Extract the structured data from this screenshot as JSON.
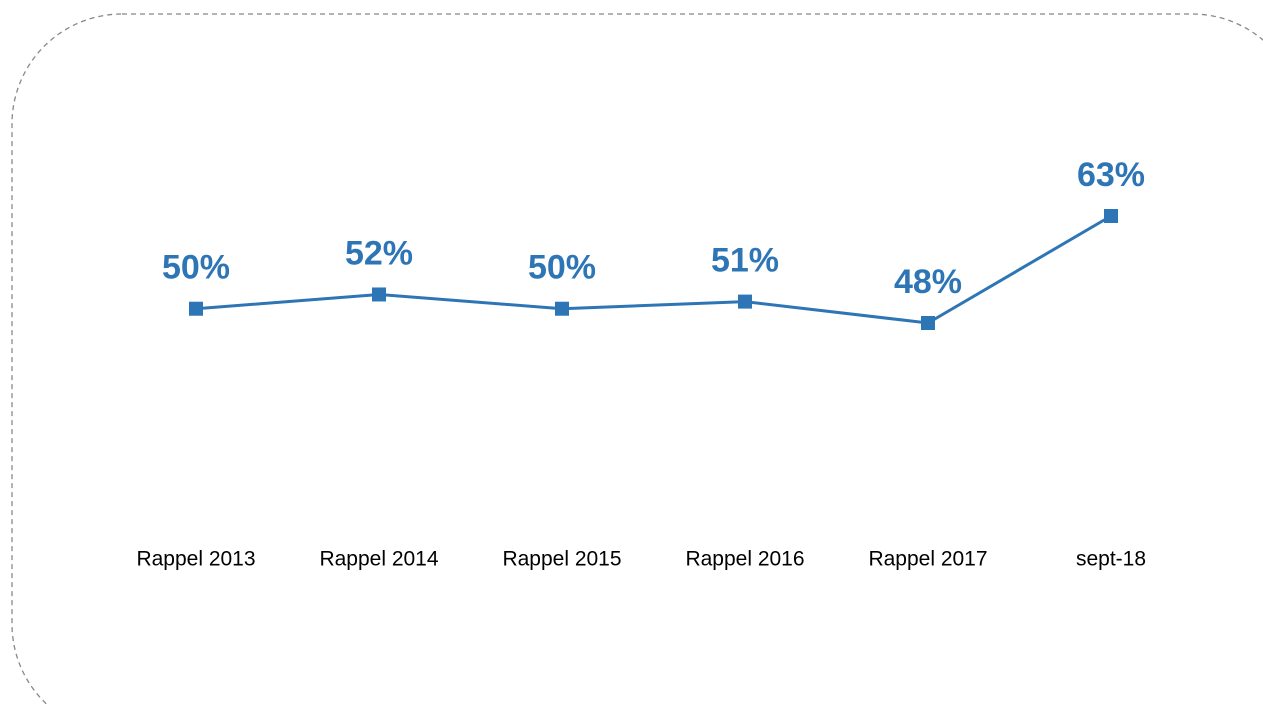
{
  "chart_data": {
    "type": "line",
    "categories": [
      "Rappel 2013",
      "Rappel 2014",
      "Rappel 2015",
      "Rappel 2016",
      "Rappel 2017",
      "sept-18"
    ],
    "series": [
      {
        "color": "#2e75b6",
        "values": [
          50,
          52,
          50,
          51,
          48,
          63
        ],
        "value_labels": [
          "50%",
          "52%",
          "50%",
          "51%",
          "48%",
          "63%"
        ]
      }
    ]
  }
}
